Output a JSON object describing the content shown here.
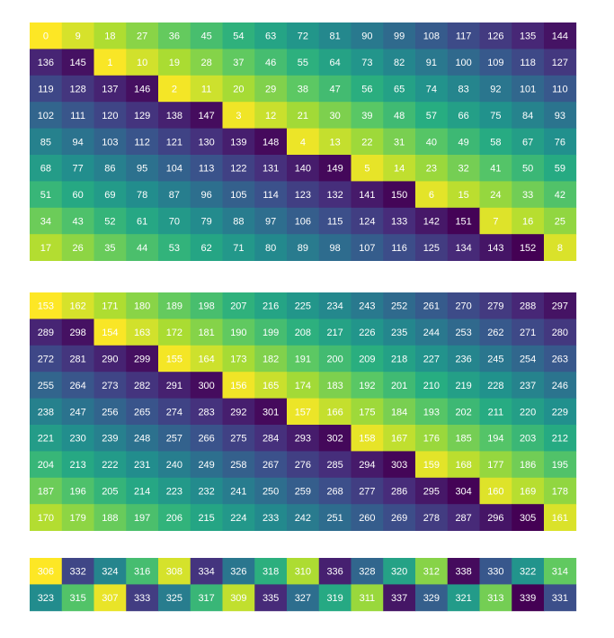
{
  "chart_data": [
    {
      "type": "heatmap",
      "title": "",
      "colormap": "viridis",
      "vmin": 0,
      "vmax": 152,
      "rows": [
        [
          0,
          9,
          18,
          27,
          36,
          45,
          54,
          63,
          72,
          81,
          90,
          99,
          108,
          117,
          126,
          135,
          144
        ],
        [
          136,
          145,
          1,
          10,
          19,
          28,
          37,
          46,
          55,
          64,
          73,
          82,
          91,
          100,
          109,
          118,
          127
        ],
        [
          119,
          128,
          137,
          146,
          2,
          11,
          20,
          29,
          38,
          47,
          56,
          65,
          74,
          83,
          92,
          101,
          110
        ],
        [
          102,
          111,
          120,
          129,
          138,
          147,
          3,
          12,
          21,
          30,
          39,
          48,
          57,
          66,
          75,
          84,
          93
        ],
        [
          85,
          94,
          103,
          112,
          121,
          130,
          139,
          148,
          4,
          13,
          22,
          31,
          40,
          49,
          58,
          67,
          76
        ],
        [
          68,
          77,
          86,
          95,
          104,
          113,
          122,
          131,
          140,
          149,
          5,
          14,
          23,
          32,
          41,
          50,
          59
        ],
        [
          51,
          60,
          69,
          78,
          87,
          96,
          105,
          114,
          123,
          132,
          141,
          150,
          6,
          15,
          24,
          33,
          42
        ],
        [
          34,
          43,
          52,
          61,
          70,
          79,
          88,
          97,
          106,
          115,
          124,
          133,
          142,
          151,
          7,
          16,
          25
        ],
        [
          17,
          26,
          35,
          44,
          53,
          62,
          71,
          80,
          89,
          98,
          107,
          116,
          125,
          134,
          143,
          152,
          8
        ]
      ]
    },
    {
      "type": "heatmap",
      "title": "",
      "colormap": "viridis",
      "vmin": 153,
      "vmax": 305,
      "rows": [
        [
          153,
          162,
          171,
          180,
          189,
          198,
          207,
          216,
          225,
          234,
          243,
          252,
          261,
          270,
          279,
          288,
          297
        ],
        [
          289,
          298,
          154,
          163,
          172,
          181,
          190,
          199,
          208,
          217,
          226,
          235,
          244,
          253,
          262,
          271,
          280
        ],
        [
          272,
          281,
          290,
          299,
          155,
          164,
          173,
          182,
          191,
          200,
          209,
          218,
          227,
          236,
          245,
          254,
          263
        ],
        [
          255,
          264,
          273,
          282,
          291,
          300,
          156,
          165,
          174,
          183,
          192,
          201,
          210,
          219,
          228,
          237,
          246
        ],
        [
          238,
          247,
          256,
          265,
          274,
          283,
          292,
          301,
          157,
          166,
          175,
          184,
          193,
          202,
          211,
          220,
          229
        ],
        [
          221,
          230,
          239,
          248,
          257,
          266,
          275,
          284,
          293,
          302,
          158,
          167,
          176,
          185,
          194,
          203,
          212
        ],
        [
          204,
          213,
          222,
          231,
          240,
          249,
          258,
          267,
          276,
          285,
          294,
          303,
          159,
          168,
          177,
          186,
          195
        ],
        [
          187,
          196,
          205,
          214,
          223,
          232,
          241,
          250,
          259,
          268,
          277,
          286,
          295,
          304,
          160,
          169,
          178
        ],
        [
          170,
          179,
          188,
          197,
          206,
          215,
          224,
          233,
          242,
          251,
          260,
          269,
          278,
          287,
          296,
          305,
          161
        ]
      ]
    },
    {
      "type": "heatmap",
      "title": "",
      "colormap": "viridis",
      "vmin": 306,
      "vmax": 339,
      "rows": [
        [
          306,
          332,
          324,
          316,
          308,
          334,
          326,
          318,
          310,
          336,
          328,
          320,
          312,
          338,
          330,
          322,
          314
        ],
        [
          323,
          315,
          307,
          333,
          325,
          317,
          309,
          335,
          327,
          319,
          311,
          337,
          329,
          321,
          313,
          339,
          331
        ]
      ]
    }
  ]
}
